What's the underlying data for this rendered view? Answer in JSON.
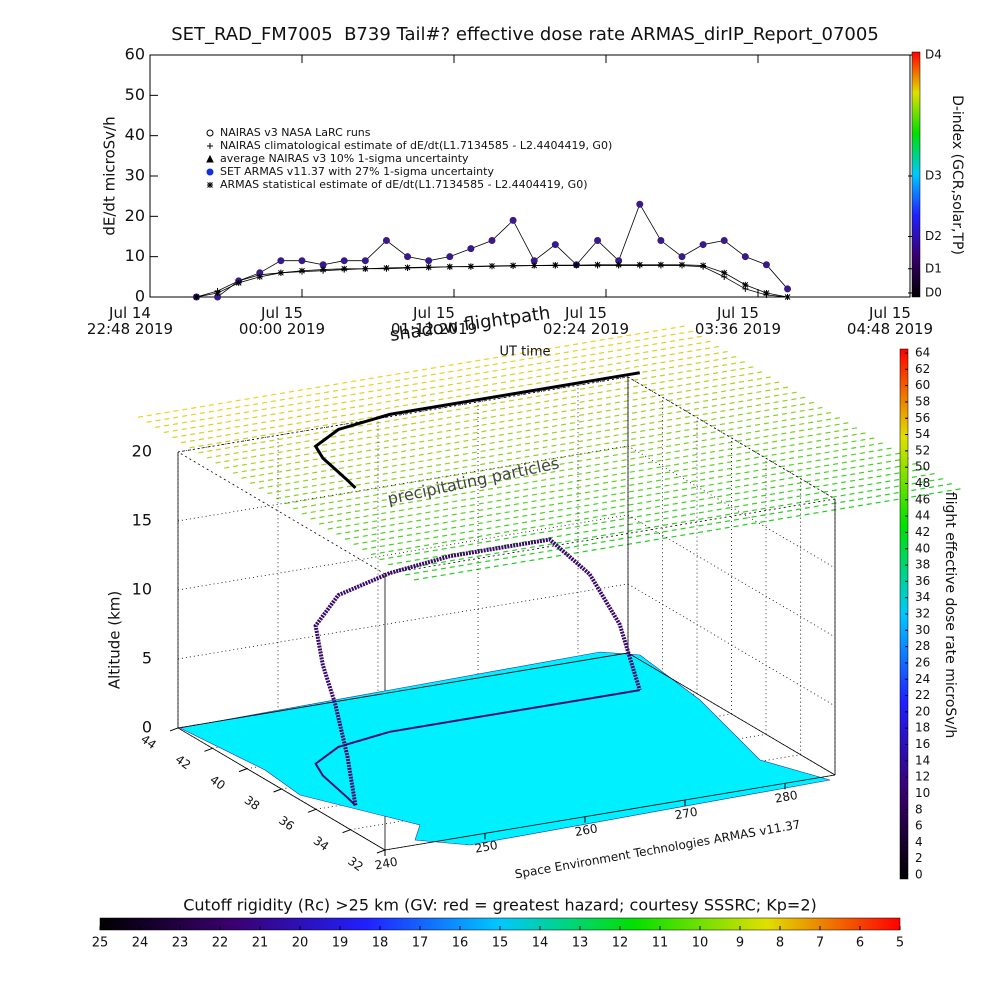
{
  "chart_data": [
    {
      "type": "line",
      "title": "SET_RAD_FM7005  B739 Tail#? effective dose rate ARMAS_dirIP_Report_07005",
      "xlabel": "UT time",
      "ylabel": "dE/dt microSv/h",
      "x": [
        "2019-07-14T23:10",
        "2019-07-14T23:20",
        "2019-07-14T23:30",
        "2019-07-14T23:40",
        "2019-07-14T23:50",
        "2019-07-15T00:00",
        "2019-07-15T00:10",
        "2019-07-15T00:20",
        "2019-07-15T00:30",
        "2019-07-15T00:40",
        "2019-07-15T00:50",
        "2019-07-15T01:00",
        "2019-07-15T01:10",
        "2019-07-15T01:20",
        "2019-07-15T01:30",
        "2019-07-15T01:40",
        "2019-07-15T01:50",
        "2019-07-15T02:00",
        "2019-07-15T02:10",
        "2019-07-15T02:20",
        "2019-07-15T02:30",
        "2019-07-15T02:40",
        "2019-07-15T02:50",
        "2019-07-15T03:00",
        "2019-07-15T03:10",
        "2019-07-15T03:20",
        "2019-07-15T03:30",
        "2019-07-15T03:40",
        "2019-07-15T03:50"
      ],
      "xlim": [
        "2019-07-14T22:48",
        "2019-07-15T04:48"
      ],
      "xticks": [
        {
          "value": "2019-07-14T22:48",
          "label": "Jul 14\n22:48 2019"
        },
        {
          "value": "2019-07-15T00:00",
          "label": "Jul 15\n00:00 2019"
        },
        {
          "value": "2019-07-15T01:12",
          "label": "Jul 15\n01:12 2019"
        },
        {
          "value": "2019-07-15T02:24",
          "label": "Jul 15\n02:24 2019"
        },
        {
          "value": "2019-07-15T03:36",
          "label": "Jul 15\n03:36 2019"
        },
        {
          "value": "2019-07-15T04:48",
          "label": "Jul 15\n04:48 2019"
        }
      ],
      "ylim": [
        0,
        60
      ],
      "yticks": [
        0,
        10,
        20,
        30,
        40,
        50,
        60
      ],
      "y2label": "D-index (GCR,solar,TP)",
      "y2lim": [
        0,
        60
      ],
      "y2ticks": [
        {
          "value": 1,
          "label": "D0"
        },
        {
          "value": 7,
          "label": "D1"
        },
        {
          "value": 15,
          "label": "D2"
        },
        {
          "value": 30,
          "label": "D3"
        },
        {
          "value": 60,
          "label": "D4"
        }
      ],
      "colormap": [
        "#000000",
        "#3a0070",
        "#2020ff",
        "#00c8ff",
        "#00e000",
        "#e0e000",
        "#ff0000"
      ],
      "series": [
        {
          "name": "NAIRAS v3 NASA LaRC runs",
          "marker": "ring",
          "color": "#000000"
        },
        {
          "name": "NAIRAS climatological estimate of dE/dt(L1.7134585 - L2.4404419, G0)",
          "marker": "plus",
          "color": "#000000",
          "values": [
            0,
            1.5,
            4,
            5.5,
            6,
            6.3,
            6.5,
            6.8,
            7,
            7,
            7.2,
            7.3,
            7.5,
            7.5,
            7.6,
            7.7,
            7.8,
            7.8,
            7.8,
            7.8,
            7.8,
            7.8,
            7.8,
            7.8,
            7.5,
            5,
            2,
            0.5,
            0
          ]
        },
        {
          "name": "average NAIRAS v3 10% 1-sigma uncertainty",
          "marker": "triangle",
          "color": "#000000"
        },
        {
          "name": "SET ARMAS v11.37 with 27% 1-sigma uncertainty",
          "marker": "circle",
          "color": "#3a1a8a",
          "values": [
            0,
            0,
            4,
            6,
            9,
            9,
            8,
            9,
            9,
            14,
            10,
            9,
            10,
            12,
            14,
            19,
            9,
            13,
            8,
            14,
            9,
            23,
            14,
            10,
            13,
            14,
            10,
            8,
            2
          ]
        },
        {
          "name": "ARMAS statistical estimate of dE/dt(L1.7134585 - L2.4404419, G0)",
          "marker": "star",
          "color": "#000000",
          "values": [
            0,
            1,
            3.5,
            5,
            6,
            6.5,
            6.8,
            7,
            7,
            7.2,
            7.3,
            7.4,
            7.5,
            7.6,
            7.7,
            7.8,
            7.8,
            7.9,
            7.9,
            8,
            8,
            8,
            8,
            8,
            7.8,
            6,
            3,
            1,
            0
          ]
        }
      ]
    },
    {
      "type": "flight3d",
      "zlabel": "Altitude (km)",
      "zlim": [
        0,
        20
      ],
      "zticks": [
        0,
        5,
        10,
        15,
        20
      ],
      "xlim": [
        240,
        285
      ],
      "xticks": [
        240,
        250,
        260,
        270,
        280
      ],
      "ylim": [
        32,
        44
      ],
      "yticks": [
        44,
        42,
        40,
        38,
        36,
        34,
        32
      ],
      "annotations": [
        "shadow flightpath",
        "precipitating particles",
        "Space Environment Technologies ARMAS v11.37"
      ],
      "shadow_altitude": 23,
      "series": [
        {
          "color": "#3a0a6a",
          "lon": [
            243.6,
            244,
            244.5,
            245,
            246,
            250,
            256,
            262,
            268,
            272,
            276,
            279,
            281
          ],
          "lat": [
            35.8,
            36.5,
            37.5,
            38.5,
            39.5,
            40.5,
            41,
            41,
            41,
            41,
            41,
            41,
            41
          ],
          "alt": [
            0,
            3,
            6,
            8,
            10,
            11,
            11.5,
            12,
            12,
            12,
            9,
            5,
            0
          ]
        }
      ],
      "colorbar": {
        "label": "flight effective dose rate microSv/h",
        "lim": [
          0,
          64
        ],
        "ticks": [
          0,
          2,
          4,
          6,
          8,
          10,
          12,
          14,
          16,
          18,
          20,
          22,
          24,
          26,
          28,
          30,
          32,
          34,
          36,
          38,
          40,
          42,
          44,
          46,
          48,
          50,
          52,
          54,
          56,
          58,
          60,
          62,
          64
        ],
        "colormap": [
          "#000000",
          "#3a0070",
          "#2020ff",
          "#00c8ff",
          "#00e000",
          "#e0e000",
          "#ff0000"
        ]
      }
    },
    {
      "type": "colorbar",
      "title": "Cutoff rigidity (Rc) >25 km (GV: red = greatest hazard; courtesy SSSRC; Kp=2)",
      "xlim": [
        25,
        5
      ],
      "xticks": [
        25,
        24,
        23,
        22,
        21,
        20,
        19,
        18,
        17,
        16,
        15,
        14,
        13,
        12,
        11,
        10,
        9,
        8,
        7,
        6,
        5
      ],
      "colormap": [
        "#000000",
        "#3a0070",
        "#2020ff",
        "#00c8ff",
        "#00e000",
        "#e0e000",
        "#ff0000"
      ]
    }
  ]
}
